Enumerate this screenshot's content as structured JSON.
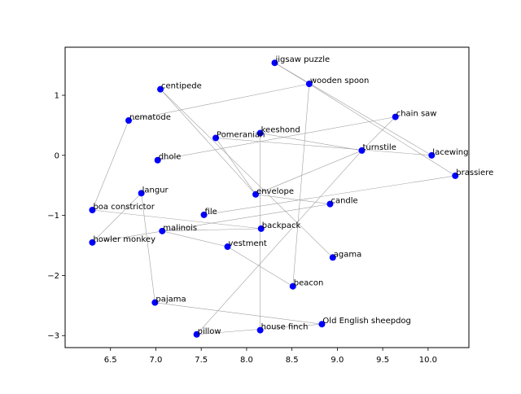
{
  "chart_data": {
    "type": "scatter",
    "title": "",
    "xlabel": "",
    "ylabel": "",
    "xlim": [
      6.0,
      10.45
    ],
    "ylim": [
      -3.2,
      1.8
    ],
    "xticks": [
      6.5,
      7.0,
      7.5,
      8.0,
      8.5,
      9.0,
      9.5,
      10.0
    ],
    "xtick_labels": [
      "6.5",
      "7.0",
      "7.5",
      "8.0",
      "8.5",
      "9.0",
      "9.5",
      "10.0"
    ],
    "yticks": [
      -3,
      -2,
      -1,
      0,
      1
    ],
    "ytick_labels": [
      "−3",
      "−2",
      "−1",
      "0",
      "1"
    ],
    "grid": false,
    "legend": false,
    "marker_color": "#0000ff",
    "edge_color": "#a0a0a0",
    "points": [
      {
        "label": "jigsaw puzzle",
        "x": 8.31,
        "y": 1.54
      },
      {
        "label": "wooden spoon",
        "x": 8.69,
        "y": 1.19
      },
      {
        "label": "centipede",
        "x": 7.05,
        "y": 1.1
      },
      {
        "label": "nematode",
        "x": 6.7,
        "y": 0.58
      },
      {
        "label": "chain saw",
        "x": 9.64,
        "y": 0.64
      },
      {
        "label": "keeshond",
        "x": 8.15,
        "y": 0.37
      },
      {
        "label": "Pomeranian",
        "x": 7.66,
        "y": 0.29
      },
      {
        "label": "turnstile",
        "x": 9.27,
        "y": 0.08
      },
      {
        "label": "lacewing",
        "x": 10.04,
        "y": 0.0
      },
      {
        "label": "dhole",
        "x": 7.02,
        "y": -0.08
      },
      {
        "label": "brassiere",
        "x": 10.3,
        "y": -0.34
      },
      {
        "label": "envelope",
        "x": 8.1,
        "y": -0.65
      },
      {
        "label": "langur",
        "x": 6.84,
        "y": -0.63
      },
      {
        "label": "candle",
        "x": 8.92,
        "y": -0.81
      },
      {
        "label": "boa constrictor",
        "x": 6.3,
        "y": -0.91
      },
      {
        "label": "file",
        "x": 7.53,
        "y": -0.99
      },
      {
        "label": "malinois",
        "x": 7.07,
        "y": -1.26
      },
      {
        "label": "backpack",
        "x": 8.16,
        "y": -1.22
      },
      {
        "label": "howler monkey",
        "x": 6.3,
        "y": -1.45
      },
      {
        "label": "vestment",
        "x": 7.79,
        "y": -1.52
      },
      {
        "label": "agama",
        "x": 8.95,
        "y": -1.7
      },
      {
        "label": "beacon",
        "x": 8.51,
        "y": -2.18
      },
      {
        "label": "pajama",
        "x": 6.99,
        "y": -2.45
      },
      {
        "label": "Old English sheepdog",
        "x": 8.83,
        "y": -2.81
      },
      {
        "label": "house finch",
        "x": 8.15,
        "y": -2.91
      },
      {
        "label": "pillow",
        "x": 7.45,
        "y": -2.98
      }
    ],
    "edges": [
      [
        "jigsaw puzzle",
        "lacewing"
      ],
      [
        "jigsaw puzzle",
        "wooden spoon"
      ],
      [
        "wooden spoon",
        "brassiere"
      ],
      [
        "wooden spoon",
        "nematode"
      ],
      [
        "wooden spoon",
        "beacon"
      ],
      [
        "centipede",
        "envelope"
      ],
      [
        "centipede",
        "agama"
      ],
      [
        "nematode",
        "boa constrictor"
      ],
      [
        "chain saw",
        "turnstile"
      ],
      [
        "chain saw",
        "dhole"
      ],
      [
        "keeshond",
        "house finch"
      ],
      [
        "keeshond",
        "turnstile"
      ],
      [
        "Pomeranian",
        "envelope"
      ],
      [
        "Pomeranian",
        "lacewing"
      ],
      [
        "turnstile",
        "envelope"
      ],
      [
        "turnstile",
        "pillow"
      ],
      [
        "envelope",
        "candle"
      ],
      [
        "langur",
        "pajama"
      ],
      [
        "langur",
        "howler monkey"
      ],
      [
        "boa constrictor",
        "backpack"
      ],
      [
        "file",
        "brassiere"
      ],
      [
        "malinois",
        "backpack"
      ],
      [
        "malinois",
        "vestment"
      ],
      [
        "howler monkey",
        "candle"
      ],
      [
        "vestment",
        "beacon"
      ],
      [
        "pajama",
        "Old English sheepdog"
      ],
      [
        "pillow",
        "Old English sheepdog"
      ]
    ]
  }
}
